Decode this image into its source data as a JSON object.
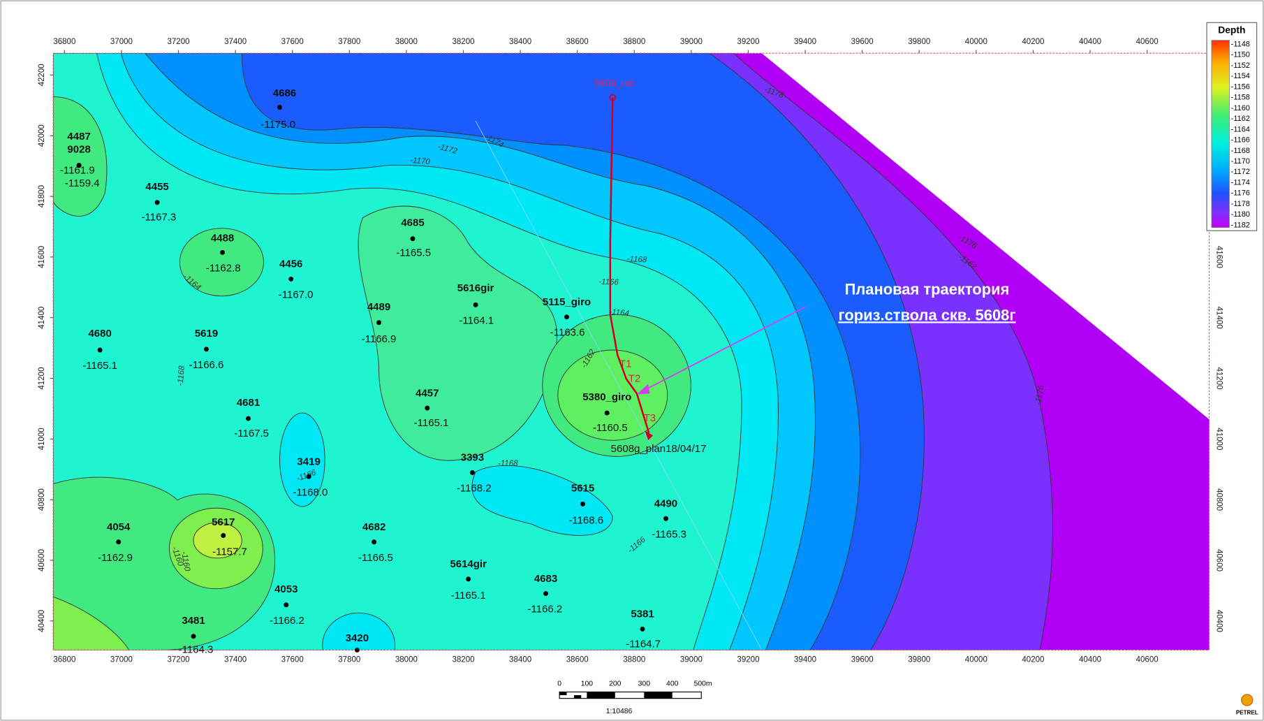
{
  "map": {
    "x_ticks": [
      36800,
      37000,
      37200,
      37400,
      37600,
      37800,
      38000,
      38200,
      38400,
      38600,
      38800,
      39000,
      39200,
      39400,
      39600,
      39800,
      40000,
      40200,
      40400,
      40600
    ],
    "y_ticks_left": [
      42200,
      42000,
      41800,
      41600,
      41400,
      41200,
      41000,
      40800,
      40600,
      40400
    ],
    "y_ticks_right": [
      41600,
      41400,
      41200,
      41000,
      40800,
      40600,
      40400
    ],
    "legend": {
      "title": "Depth",
      "levels": [
        -1148,
        -1150,
        -1152,
        -1154,
        -1156,
        -1158,
        -1160,
        -1162,
        -1164,
        -1166,
        -1168,
        -1170,
        -1172,
        -1174,
        -1176,
        -1178,
        -1180,
        -1182
      ]
    },
    "contour_labels": [
      "-1176",
      "-1174",
      "-1172",
      "-1170",
      "-1168",
      "-1166",
      "-1164",
      "-1162",
      "-1160",
      "-1178",
      "-1176",
      "-1168",
      "-1166",
      "-1164",
      "-1162",
      "-1160",
      "-1168",
      "-1166"
    ],
    "wells": [
      {
        "name": "4686",
        "depth": "-1175.0"
      },
      {
        "name": "4487",
        "depth": "-1161.9"
      },
      {
        "name": "9028",
        "depth": "-1159.4"
      },
      {
        "name": "4455",
        "depth": "-1167.3"
      },
      {
        "name": "4488",
        "depth": "-1162.8"
      },
      {
        "name": "4456",
        "depth": "-1167.0"
      },
      {
        "name": "4685",
        "depth": "-1165.5"
      },
      {
        "name": "5616gir",
        "depth": "-1164.1"
      },
      {
        "name": "5115_giro",
        "depth": "-1163.6"
      },
      {
        "name": "4489",
        "depth": "-1166.9"
      },
      {
        "name": "4680",
        "depth": "-1165.1"
      },
      {
        "name": "5619",
        "depth": "-1166.6"
      },
      {
        "name": "4681",
        "depth": "-1167.5"
      },
      {
        "name": "4457",
        "depth": "-1165.1"
      },
      {
        "name": "5380_giro",
        "depth": "-1160.5"
      },
      {
        "name": "3419",
        "depth": "-1168.0"
      },
      {
        "name": "3393",
        "depth": "-1168.2"
      },
      {
        "name": "5615",
        "depth": "-1168.6"
      },
      {
        "name": "4490",
        "depth": "-1165.3"
      },
      {
        "name": "4054",
        "depth": "-1162.9"
      },
      {
        "name": "5617",
        "depth": "-1157.7"
      },
      {
        "name": "4682",
        "depth": "-1166.5"
      },
      {
        "name": "5614gir",
        "depth": "-1165.1"
      },
      {
        "name": "4683",
        "depth": "-1166.2"
      },
      {
        "name": "4053",
        "depth": "-1166.2"
      },
      {
        "name": "3481",
        "depth": "-1164.3"
      },
      {
        "name": "5381",
        "depth": "-1164.7"
      },
      {
        "name": "3420"
      }
    ],
    "trajectory": {
      "start": "5608_ust",
      "points": [
        "T1",
        "T2",
        "T3"
      ],
      "plan": "5608g_plan18/04/17"
    },
    "annotation": [
      "Плановая траектория",
      "гориз.ствола скв. 5608г"
    ],
    "scale_bar": {
      "labels": [
        "0",
        "100",
        "200",
        "300",
        "400",
        "500m"
      ],
      "ratio": "1:10486"
    },
    "logo": "PETREL"
  }
}
